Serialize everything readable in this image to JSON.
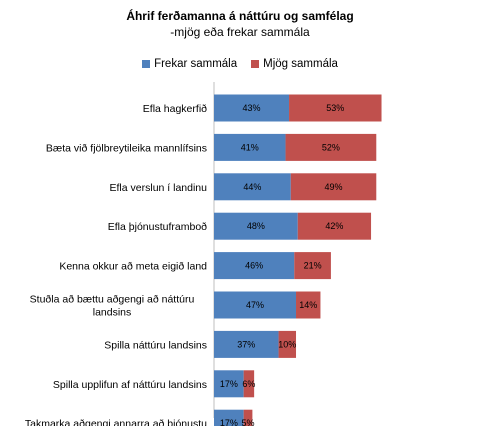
{
  "chart_data": {
    "type": "bar",
    "orientation": "horizontal",
    "stacked": true,
    "title": "Áhrif ferðamanna  á náttúru og samfélag",
    "subtitle": "-mjög eða frekar sammála",
    "legend_position": "top",
    "categories": [
      [
        "Efla hagkerfið"
      ],
      [
        "Bæta við fjölbreytileika mannlífsins"
      ],
      [
        "Efla verslun í landinu"
      ],
      [
        "Efla þjónustuframboð"
      ],
      [
        "Kenna okkur að meta eigið land"
      ],
      [
        "Stuðla að bættu aðgengi að náttúru",
        "landsins"
      ],
      [
        "Spilla náttúru landsins"
      ],
      [
        "Spilla upplifun af náttúru landsins"
      ],
      [
        "Takmarka aðgengi annarra að þjónustu"
      ]
    ],
    "series": [
      {
        "name": "Frekar sammála",
        "color": "#4f81bd",
        "values": [
          43,
          41,
          44,
          48,
          46,
          47,
          37,
          17,
          17
        ],
        "labels": [
          "43%",
          "41%",
          "44%",
          "48%",
          "46%",
          "47%",
          "37%",
          "17%",
          "17%"
        ]
      },
      {
        "name": "Mjög sammála",
        "color": "#c0504d",
        "values": [
          53,
          52,
          49,
          42,
          21,
          14,
          10,
          6,
          5
        ],
        "labels": [
          "53%",
          "52%",
          "49%",
          "42%",
          "21%",
          "14%",
          "10%",
          "6%",
          "5%"
        ]
      }
    ],
    "xlim": [
      0,
      100
    ],
    "grid": false
  }
}
